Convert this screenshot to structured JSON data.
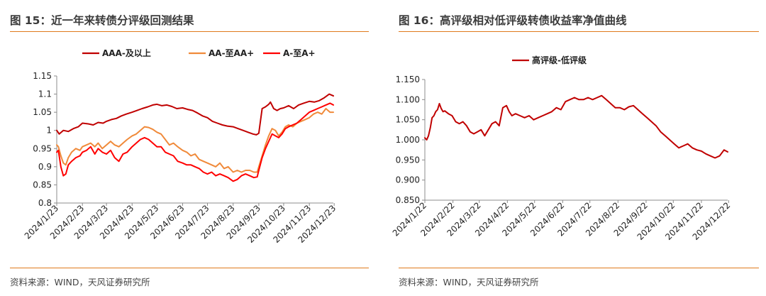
{
  "left": {
    "title": "图 15：近一年来转债分评级回测结果",
    "source": "资料来源：WIND，天风证券研究所",
    "chart_data": {
      "type": "line",
      "title": "",
      "xlabel": "",
      "ylabel": "",
      "ylim": [
        0.8,
        1.15
      ],
      "yticks": [
        "1.15",
        "1.1",
        "1.05",
        "1",
        "0.95",
        "0.9",
        "0.85",
        "0.8"
      ],
      "ytick_values": [
        1.15,
        1.1,
        1.05,
        1.0,
        0.95,
        0.9,
        0.85,
        0.8
      ],
      "xlim": [
        0,
        334
      ],
      "xticks": [
        "2024/1/23",
        "2024/2/23",
        "2024/3/23",
        "2024/4/23",
        "2024/5/23",
        "2024/6/23",
        "2024/7/23",
        "2024/8/23",
        "2024/9/23",
        "2024/10/23",
        "2024/11/23",
        "2024/12/23"
      ],
      "xtick_days": [
        0,
        31,
        60,
        91,
        121,
        152,
        182,
        213,
        244,
        274,
        305,
        335
      ],
      "legend_position": "top",
      "series": [
        {
          "name": "AAA-及以上",
          "color": "#c00000",
          "x": [
            0,
            3,
            8,
            14,
            20,
            26,
            31,
            38,
            44,
            50,
            56,
            60,
            66,
            72,
            78,
            84,
            91,
            97,
            103,
            110,
            116,
            121,
            127,
            133,
            139,
            145,
            152,
            158,
            164,
            170,
            176,
            182,
            188,
            194,
            200,
            206,
            213,
            219,
            225,
            231,
            237,
            241,
            244,
            248,
            252,
            256,
            258,
            262,
            266,
            270,
            274,
            280,
            286,
            292,
            298,
            305,
            311,
            317,
            323,
            329,
            334
          ],
          "values": [
            1.0,
            0.99,
            1.0,
            0.997,
            1.005,
            1.01,
            1.02,
            1.018,
            1.015,
            1.022,
            1.02,
            1.025,
            1.03,
            1.033,
            1.04,
            1.045,
            1.05,
            1.055,
            1.06,
            1.065,
            1.07,
            1.072,
            1.068,
            1.07,
            1.066,
            1.06,
            1.062,
            1.058,
            1.055,
            1.048,
            1.04,
            1.035,
            1.025,
            1.02,
            1.015,
            1.012,
            1.01,
            1.005,
            1.0,
            0.995,
            0.99,
            0.988,
            0.992,
            1.06,
            1.065,
            1.072,
            1.078,
            1.06,
            1.055,
            1.06,
            1.062,
            1.068,
            1.06,
            1.07,
            1.075,
            1.08,
            1.078,
            1.082,
            1.09,
            1.1,
            1.095
          ]
        },
        {
          "name": "AA-至AA+",
          "color": "#f08a3a",
          "x": [
            0,
            2,
            5,
            8,
            11,
            14,
            18,
            23,
            28,
            31,
            36,
            41,
            46,
            50,
            55,
            60,
            65,
            70,
            75,
            80,
            85,
            91,
            96,
            101,
            106,
            111,
            116,
            121,
            126,
            131,
            136,
            141,
            146,
            152,
            157,
            162,
            167,
            172,
            177,
            182,
            187,
            192,
            197,
            202,
            207,
            213,
            218,
            223,
            228,
            233,
            238,
            242,
            244,
            248,
            252,
            256,
            260,
            264,
            268,
            272,
            276,
            280,
            285,
            290,
            295,
            300,
            305,
            310,
            315,
            320,
            325,
            330,
            334
          ],
          "values": [
            0.96,
            0.955,
            0.93,
            0.91,
            0.905,
            0.925,
            0.94,
            0.95,
            0.945,
            0.955,
            0.96,
            0.965,
            0.955,
            0.965,
            0.95,
            0.96,
            0.97,
            0.96,
            0.955,
            0.965,
            0.975,
            0.985,
            0.99,
            1.0,
            1.01,
            1.008,
            1.003,
            0.995,
            0.99,
            0.975,
            0.96,
            0.965,
            0.955,
            0.945,
            0.94,
            0.93,
            0.935,
            0.92,
            0.915,
            0.91,
            0.905,
            0.9,
            0.91,
            0.895,
            0.9,
            0.885,
            0.89,
            0.885,
            0.89,
            0.89,
            0.885,
            0.885,
            0.9,
            0.93,
            0.96,
            0.985,
            1.005,
            1.0,
            0.985,
            0.995,
            1.01,
            1.015,
            1.01,
            1.02,
            1.025,
            1.03,
            1.035,
            1.045,
            1.05,
            1.045,
            1.06,
            1.05,
            1.05
          ]
        },
        {
          "name": "A-至A+",
          "color": "#ff0000",
          "x": [
            0,
            2,
            5,
            8,
            11,
            14,
            18,
            23,
            28,
            31,
            36,
            41,
            46,
            50,
            55,
            60,
            65,
            70,
            75,
            80,
            85,
            91,
            96,
            101,
            106,
            111,
            116,
            121,
            126,
            131,
            136,
            141,
            146,
            152,
            157,
            162,
            167,
            172,
            177,
            182,
            187,
            192,
            197,
            202,
            207,
            213,
            218,
            223,
            228,
            233,
            238,
            242,
            244,
            248,
            252,
            256,
            260,
            264,
            268,
            272,
            276,
            280,
            285,
            290,
            295,
            300,
            305,
            310,
            315,
            320,
            325,
            330,
            334
          ],
          "values": [
            0.94,
            0.945,
            0.9,
            0.875,
            0.88,
            0.905,
            0.915,
            0.925,
            0.93,
            0.94,
            0.945,
            0.955,
            0.935,
            0.95,
            0.94,
            0.935,
            0.945,
            0.925,
            0.915,
            0.935,
            0.94,
            0.955,
            0.965,
            0.975,
            0.98,
            0.975,
            0.965,
            0.955,
            0.955,
            0.94,
            0.935,
            0.93,
            0.915,
            0.91,
            0.905,
            0.905,
            0.9,
            0.895,
            0.885,
            0.88,
            0.885,
            0.875,
            0.88,
            0.875,
            0.87,
            0.86,
            0.865,
            0.875,
            0.88,
            0.875,
            0.87,
            0.872,
            0.89,
            0.925,
            0.95,
            0.97,
            0.99,
            0.985,
            0.98,
            0.99,
            1.005,
            1.01,
            1.015,
            1.02,
            1.03,
            1.04,
            1.05,
            1.055,
            1.06,
            1.065,
            1.07,
            1.075,
            1.07
          ]
        }
      ]
    }
  },
  "right": {
    "title": "图 16：高评级相对低评级转债收益率净值曲线",
    "source": "资料来源：WIND，天风证券研究所",
    "chart_data": {
      "type": "line",
      "title": "",
      "xlabel": "",
      "ylabel": "",
      "ylim": [
        0.85,
        1.15
      ],
      "yticks": [
        "1.150",
        "1.100",
        "1.050",
        "1.000",
        "0.950",
        "0.900",
        "0.850"
      ],
      "ytick_values": [
        1.15,
        1.1,
        1.05,
        1.0,
        0.95,
        0.9,
        0.85
      ],
      "xlim": [
        0,
        334
      ],
      "xticks": [
        "2024/1/22",
        "2024/2/22",
        "2024/3/22",
        "2024/4/22",
        "2024/5/22",
        "2024/6/22",
        "2024/7/22",
        "2024/8/22",
        "2024/9/22",
        "2024/10/22",
        "2024/11/22",
        "2024/12/22"
      ],
      "xtick_days": [
        0,
        31,
        60,
        91,
        121,
        152,
        182,
        213,
        244,
        274,
        305,
        335
      ],
      "legend_position": "top",
      "series": [
        {
          "name": "高评级-低评级",
          "color": "#c00000",
          "x": [
            0,
            2,
            4,
            6,
            8,
            10,
            12,
            14,
            16,
            18,
            20,
            22,
            26,
            30,
            34,
            38,
            42,
            46,
            50,
            54,
            58,
            62,
            66,
            70,
            74,
            78,
            82,
            86,
            90,
            93,
            96,
            100,
            105,
            110,
            115,
            120,
            125,
            130,
            135,
            140,
            145,
            150,
            155,
            160,
            165,
            170,
            175,
            180,
            185,
            190,
            195,
            200,
            205,
            210,
            215,
            220,
            225,
            230,
            235,
            240,
            245,
            250,
            255,
            260,
            265,
            270,
            275,
            280,
            285,
            290,
            295,
            300,
            305,
            310,
            315,
            320,
            325,
            330,
            334
          ],
          "values": [
            1.005,
            1.0,
            1.01,
            1.03,
            1.055,
            1.06,
            1.07,
            1.075,
            1.09,
            1.078,
            1.07,
            1.072,
            1.065,
            1.06,
            1.045,
            1.04,
            1.045,
            1.035,
            1.02,
            1.015,
            1.02,
            1.025,
            1.01,
            1.025,
            1.04,
            1.045,
            1.035,
            1.08,
            1.085,
            1.07,
            1.06,
            1.065,
            1.06,
            1.055,
            1.06,
            1.05,
            1.055,
            1.06,
            1.065,
            1.07,
            1.08,
            1.075,
            1.095,
            1.1,
            1.105,
            1.1,
            1.1,
            1.105,
            1.1,
            1.105,
            1.11,
            1.1,
            1.09,
            1.08,
            1.08,
            1.075,
            1.082,
            1.085,
            1.075,
            1.065,
            1.055,
            1.045,
            1.035,
            1.02,
            1.01,
            1.0,
            0.99,
            0.98,
            0.985,
            0.99,
            0.98,
            0.975,
            0.972,
            0.965,
            0.96,
            0.955,
            0.96,
            0.975,
            0.97
          ]
        }
      ]
    }
  }
}
